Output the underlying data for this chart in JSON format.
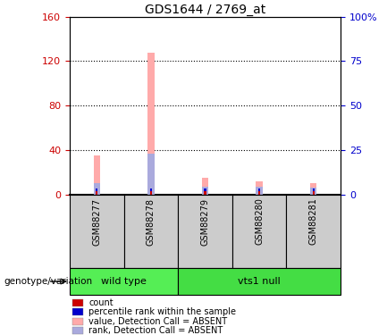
{
  "title": "GDS1644 / 2769_at",
  "samples": [
    "GSM88277",
    "GSM88278",
    "GSM88279",
    "GSM88280",
    "GSM88281"
  ],
  "groups": [
    {
      "name": "wild type",
      "color": "#55ee55",
      "start": 0,
      "end": 2
    },
    {
      "name": "vts1 null",
      "color": "#44dd44",
      "start": 2,
      "end": 5
    }
  ],
  "left_ylim": [
    0,
    160
  ],
  "right_ylim": [
    0,
    100
  ],
  "left_yticks": [
    0,
    40,
    80,
    120,
    160
  ],
  "right_yticks": [
    0,
    25,
    50,
    75,
    100
  ],
  "right_yticklabels": [
    "0",
    "25",
    "50",
    "75",
    "100%"
  ],
  "pink_bars": [
    35,
    128,
    15,
    12,
    10
  ],
  "blue_bars": [
    10,
    37,
    7,
    7,
    6
  ],
  "red_bars": [
    2.5,
    2.5,
    2.5,
    2.5,
    2.5
  ],
  "darkblue_bars": [
    2.5,
    2.5,
    2.5,
    2.5,
    2.5
  ],
  "pink_color": "#ffaaaa",
  "blue_color": "#aaaadd",
  "red_color": "#cc0000",
  "darkblue_color": "#0000cc",
  "legend_items": [
    {
      "label": "count",
      "color": "#cc0000"
    },
    {
      "label": "percentile rank within the sample",
      "color": "#0000cc"
    },
    {
      "label": "value, Detection Call = ABSENT",
      "color": "#ffaaaa"
    },
    {
      "label": "rank, Detection Call = ABSENT",
      "color": "#aaaadd"
    }
  ],
  "left_axis_color": "#cc0000",
  "right_axis_color": "#0000cc",
  "sample_box_color": "#cccccc",
  "group_label": "genotype/variation"
}
